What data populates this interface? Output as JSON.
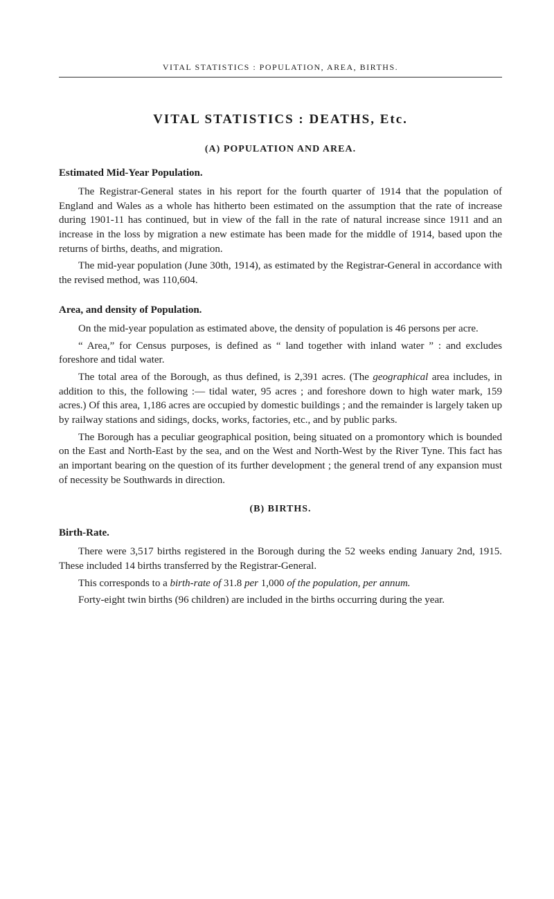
{
  "page_header": "VITAL STATISTICS : POPULATION, AREA, BIRTHS.",
  "main_title": "VITAL STATISTICS : DEATHS, Etc.",
  "section_a": {
    "heading": "(A) POPULATION AND AREA.",
    "sub1": {
      "heading": "Estimated Mid-Year Population.",
      "p1": "The Registrar-General states in his report for the fourth quarter of 1914 that the population of England and Wales as a whole has hitherto been estimated on the assumption that the rate of increase during 1901-11 has continued, but in view of the fall in the rate of natural increase since 1911 and an increase in the loss by migration a new estimate has been made for the middle of 1914, based upon the returns of births, deaths, and migration.",
      "p2": "The mid-year population (June 30th, 1914), as estimated by the Registrar-General in accordance with the revised method, was 110,604."
    },
    "sub2": {
      "heading": "Area, and density of Population.",
      "p1": "On the mid-year population as estimated above, the density of population is 46 persons per acre.",
      "p2": "“ Area,” for Census purposes, is defined as “ land together with inland water ” : and excludes foreshore and tidal water.",
      "p3_a": "The total area of the Borough, as thus defined, is 2,391 acres. (The ",
      "p3_ital": "geographical",
      "p3_b": " area includes, in addition to this, the following :— tidal water, 95 acres ; and foreshore down to high water mark, 159 acres.) Of this area, 1,186 acres are occupied by domestic buildings ; and the remainder is largely taken up by railway stations and sidings, docks, works, factories, etc., and by public parks.",
      "p4": "The Borough has a peculiar geographical position, being situated on a promontory which is bounded on the East and North-East by the sea, and on the West and North-West by the River Tyne. This fact has an important bearing on the question of its further development ; the general trend of any expansion must of necessity be Southwards in direction."
    }
  },
  "section_b": {
    "heading": "(B) BIRTHS.",
    "sub1": {
      "heading": "Birth-Rate.",
      "p1": "There were 3,517 births registered in the Borough during the 52 weeks ending January 2nd, 1915. These included 14 births transferred by the Registrar-General.",
      "p2_a": "This corresponds to a ",
      "p2_ital1": "birth-rate of",
      "p2_b": " 31.8 ",
      "p2_ital2": "per",
      "p2_c": " 1,000 ",
      "p2_ital3": "of the population, per annum.",
      "p3": "Forty-eight twin births (96 children) are included in the births occurring during the year."
    }
  }
}
